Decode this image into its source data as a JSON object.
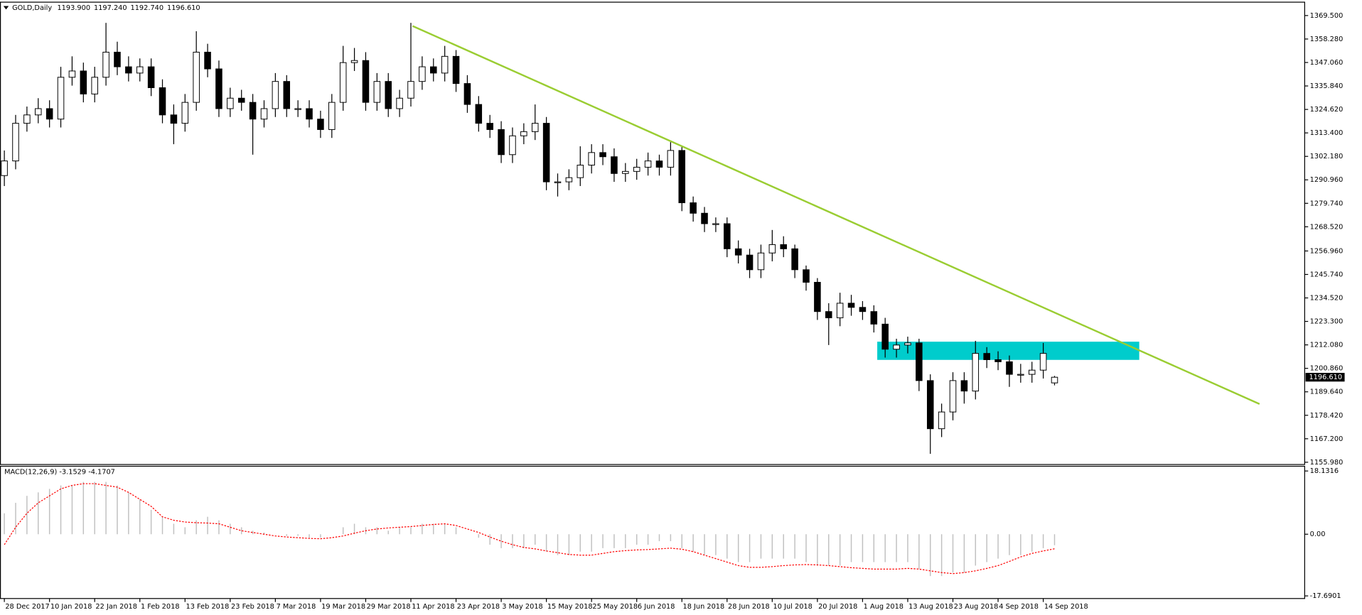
{
  "chart_data": [
    {
      "type": "candlestick",
      "title": "GOLD,Daily",
      "last_labels": [
        "1193.900",
        "1197.240",
        "1192.740",
        "1196.610"
      ],
      "open": [
        1293,
        1300,
        1318,
        1322,
        1325,
        1320,
        1340,
        1343,
        1332,
        1340,
        1352,
        1345,
        1342,
        1345,
        1335,
        1322,
        1318,
        1328,
        1352,
        1344,
        1325,
        1330,
        1328,
        1320,
        1325,
        1338,
        1325,
        1325,
        1320,
        1315,
        1328,
        1347,
        1348,
        1328,
        1338,
        1325,
        1330,
        1338,
        1345,
        1342,
        1350,
        1337,
        1327,
        1318,
        1315,
        1303,
        1312,
        1314,
        1318,
        1290,
        1290,
        1292,
        1298,
        1304,
        1302,
        1294,
        1295,
        1297,
        1300,
        1297,
        1305,
        1280,
        1275,
        1270,
        1270,
        1258,
        1255,
        1248,
        1256,
        1260,
        1258,
        1248,
        1242,
        1228,
        1225,
        1232,
        1230,
        1228,
        1222,
        1210,
        1212,
        1213,
        1195,
        1172,
        1180,
        1195,
        1190,
        1208,
        1205,
        1204,
        1198,
        1198,
        1200,
        1193.9
      ],
      "high": [
        1305,
        1322,
        1326,
        1330,
        1329,
        1345,
        1350,
        1347,
        1345,
        1366,
        1357,
        1350,
        1349,
        1349,
        1339,
        1327,
        1332,
        1362,
        1356,
        1348,
        1335,
        1334,
        1332,
        1329,
        1342,
        1341,
        1329,
        1329,
        1324,
        1332,
        1355,
        1354,
        1352,
        1342,
        1342,
        1334,
        1366,
        1350,
        1349,
        1355,
        1353,
        1341,
        1331,
        1322,
        1319,
        1316,
        1318,
        1327,
        1321,
        1294,
        1296,
        1307,
        1308,
        1308,
        1306,
        1299,
        1301,
        1304,
        1303,
        1309,
        1307,
        1283,
        1278,
        1273,
        1273,
        1262,
        1258,
        1260,
        1267,
        1264,
        1260,
        1250,
        1244,
        1232,
        1237,
        1236,
        1233,
        1231,
        1225,
        1215,
        1216,
        1215,
        1198,
        1184,
        1199,
        1199,
        1214,
        1211,
        1209,
        1207,
        1203,
        1204,
        1213,
        1197.24
      ],
      "low": [
        1288,
        1296,
        1314,
        1318,
        1316,
        1316,
        1336,
        1328,
        1328,
        1336,
        1341,
        1338,
        1338,
        1331,
        1318,
        1308,
        1314,
        1324,
        1340,
        1321,
        1321,
        1324,
        1303,
        1316,
        1321,
        1321,
        1321,
        1316,
        1311,
        1311,
        1324,
        1343,
        1324,
        1324,
        1321,
        1321,
        1326,
        1334,
        1338,
        1338,
        1333,
        1323,
        1314,
        1311,
        1299,
        1299,
        1308,
        1310,
        1286,
        1283,
        1286,
        1288,
        1294,
        1298,
        1290,
        1290,
        1291,
        1293,
        1293,
        1293,
        1276,
        1271,
        1266,
        1266,
        1254,
        1251,
        1244,
        1244,
        1252,
        1254,
        1244,
        1238,
        1224,
        1212,
        1221,
        1226,
        1224,
        1218,
        1206,
        1206,
        1208,
        1190,
        1160,
        1168,
        1176,
        1184,
        1186,
        1201,
        1200,
        1192,
        1194,
        1194,
        1196,
        1192.74
      ],
      "close": [
        1300,
        1318,
        1322,
        1325,
        1320,
        1340,
        1343,
        1332,
        1340,
        1352,
        1345,
        1342,
        1345,
        1335,
        1322,
        1318,
        1328,
        1352,
        1344,
        1325,
        1330,
        1328,
        1320,
        1325,
        1338,
        1325,
        1325,
        1320,
        1315,
        1328,
        1347,
        1348,
        1328,
        1338,
        1325,
        1330,
        1338,
        1345,
        1342,
        1350,
        1337,
        1327,
        1318,
        1315,
        1303,
        1312,
        1314,
        1318,
        1290,
        1290,
        1292,
        1298,
        1304,
        1302,
        1294,
        1295,
        1297,
        1300,
        1297,
        1305,
        1280,
        1275,
        1270,
        1270,
        1258,
        1255,
        1248,
        1256,
        1260,
        1258,
        1248,
        1242,
        1228,
        1225,
        1232,
        1230,
        1228,
        1222,
        1210,
        1212,
        1213,
        1195,
        1172,
        1180,
        1195,
        1190,
        1208,
        1205,
        1204,
        1198,
        1198,
        1200,
        1208,
        1196.61
      ],
      "xlim": [
        -0.385,
        115.15
      ],
      "ylim": [
        1155.1,
        1376.1
      ],
      "yticks": [
        {
          "value": 1155.98,
          "label": "1155.980"
        },
        {
          "value": 1167.2,
          "label": "1167.200"
        },
        {
          "value": 1178.42,
          "label": "1178.420"
        },
        {
          "value": 1189.64,
          "label": "1189.640"
        },
        {
          "value": 1200.86,
          "label": "1200.860"
        },
        {
          "value": 1212.08,
          "label": "1212.080"
        },
        {
          "value": 1223.3,
          "label": "1223.300"
        },
        {
          "value": 1234.52,
          "label": "1234.520"
        },
        {
          "value": 1245.74,
          "label": "1245.740"
        },
        {
          "value": 1256.96,
          "label": "1256.960"
        },
        {
          "value": 1268.52,
          "label": "1268.520"
        },
        {
          "value": 1279.74,
          "label": "1279.740"
        },
        {
          "value": 1290.96,
          "label": "1290.960"
        },
        {
          "value": 1302.18,
          "label": "1302.180"
        },
        {
          "value": 1313.4,
          "label": "1313.400"
        },
        {
          "value": 1324.62,
          "label": "1324.620"
        },
        {
          "value": 1335.84,
          "label": "1335.840"
        },
        {
          "value": 1347.06,
          "label": "1347.060"
        },
        {
          "value": 1358.28,
          "label": "1358.280"
        },
        {
          "value": 1369.5,
          "label": "1369.500"
        }
      ],
      "xticks": [
        {
          "value": 0,
          "label": "28 Dec 2017"
        },
        {
          "value": 4,
          "label": "10 Jan 2018"
        },
        {
          "value": 8,
          "label": "22 Jan 2018"
        },
        {
          "value": 12,
          "label": "1 Feb 2018"
        },
        {
          "value": 16,
          "label": "13 Feb 2018"
        },
        {
          "value": 20,
          "label": "23 Feb 2018"
        },
        {
          "value": 24,
          "label": "7 Mar 2018"
        },
        {
          "value": 28,
          "label": "19 Mar 2018"
        },
        {
          "value": 32,
          "label": "29 Mar 2018"
        },
        {
          "value": 36,
          "label": "11 Apr 2018"
        },
        {
          "value": 40,
          "label": "23 Apr 2018"
        },
        {
          "value": 44,
          "label": "3 May 2018"
        },
        {
          "value": 48,
          "label": "15 May 2018"
        },
        {
          "value": 52,
          "label": "25 May 2018"
        },
        {
          "value": 56,
          "label": "6 Jun 2018"
        },
        {
          "value": 60,
          "label": "18 Jun 2018"
        },
        {
          "value": 64,
          "label": "28 Jun 2018"
        },
        {
          "value": 68,
          "label": "10 Jul 2018"
        },
        {
          "value": 72,
          "label": "20 Jul 2018"
        },
        {
          "value": 76,
          "label": "1 Aug 2018"
        },
        {
          "value": 80,
          "label": "13 Aug 2018"
        },
        {
          "value": 84,
          "label": "23 Aug 2018"
        },
        {
          "value": 88,
          "label": "4 Sep 2018"
        },
        {
          "value": 92,
          "label": "14 Sep 2018"
        }
      ],
      "grid": false,
      "up_color": "#ffffff",
      "down_color": "#000000",
      "trendline": {
        "x": [
          36.15,
          111.15
        ],
        "y": [
          1364.5,
          1183.8
        ],
        "color": "#9acd32"
      },
      "zone": {
        "x": [
          77.3,
          100.5
        ],
        "y": [
          1204.9,
          1213.6
        ],
        "color": "#00cccc"
      }
    },
    {
      "type": "macd",
      "title": "MACD(12,26,9) -3.1529 -4.1707",
      "ylim": [
        -18.44,
        19.62
      ],
      "yticks": [
        -17.6901,
        {
          "value": 0,
          "label": "0.00"
        },
        18.1316
      ],
      "histogram": {
        "color": "#c0c0c0",
        "values": [
          6,
          9,
          11,
          12,
          13,
          14,
          14,
          15,
          15,
          15,
          14,
          12,
          10,
          7,
          5,
          3,
          2,
          4,
          5,
          4,
          3,
          2,
          1,
          0.5,
          0,
          -0.5,
          -0.5,
          -1,
          -1,
          0,
          2,
          3,
          2,
          2,
          1,
          2,
          2,
          3,
          3,
          3,
          2,
          0,
          -1,
          -3,
          -4,
          -4,
          -4,
          -3,
          -5,
          -6,
          -6,
          -5,
          -5,
          -4,
          -4,
          -4,
          -3,
          -3,
          -2,
          -2,
          -4,
          -5,
          -6,
          -6,
          -7,
          -8,
          -8,
          -7,
          -7,
          -7,
          -7,
          -8,
          -9,
          -9,
          -9,
          -8,
          -8,
          -8,
          -8,
          -8,
          -8,
          -10,
          -12,
          -12,
          -11,
          -11,
          -9,
          -8,
          -7,
          -6,
          -6,
          -5,
          -4,
          -3.1529
        ]
      },
      "signal": {
        "color": "#ff0000",
        "values": [
          -3,
          2,
          6,
          9,
          11,
          13,
          14,
          14.5,
          14.5,
          14,
          13.5,
          12,
          10,
          8,
          5,
          4,
          3.5,
          3.3,
          3.2,
          3,
          2,
          1,
          0.5,
          0,
          -0.5,
          -0.8,
          -1,
          -1.2,
          -1.3,
          -1,
          -0.5,
          0.3,
          1,
          1.5,
          1.8,
          2,
          2.2,
          2.5,
          2.8,
          3,
          2.5,
          1.5,
          0.5,
          -0.8,
          -2,
          -3,
          -3.8,
          -4.2,
          -4.8,
          -5.3,
          -5.8,
          -6,
          -6,
          -5.5,
          -5,
          -4.7,
          -4.5,
          -4.4,
          -4.2,
          -4,
          -4.3,
          -5,
          -6,
          -7,
          -8,
          -9,
          -9.5,
          -9.5,
          -9.3,
          -9,
          -8.8,
          -8.7,
          -8.8,
          -9,
          -9.3,
          -9.6,
          -9.8,
          -10,
          -10,
          -10,
          -9.8,
          -10,
          -10.5,
          -11,
          -11.3,
          -11,
          -10.5,
          -9.8,
          -9,
          -7.8,
          -6.5,
          -5.5,
          -4.8,
          -4.1707
        ]
      }
    }
  ]
}
